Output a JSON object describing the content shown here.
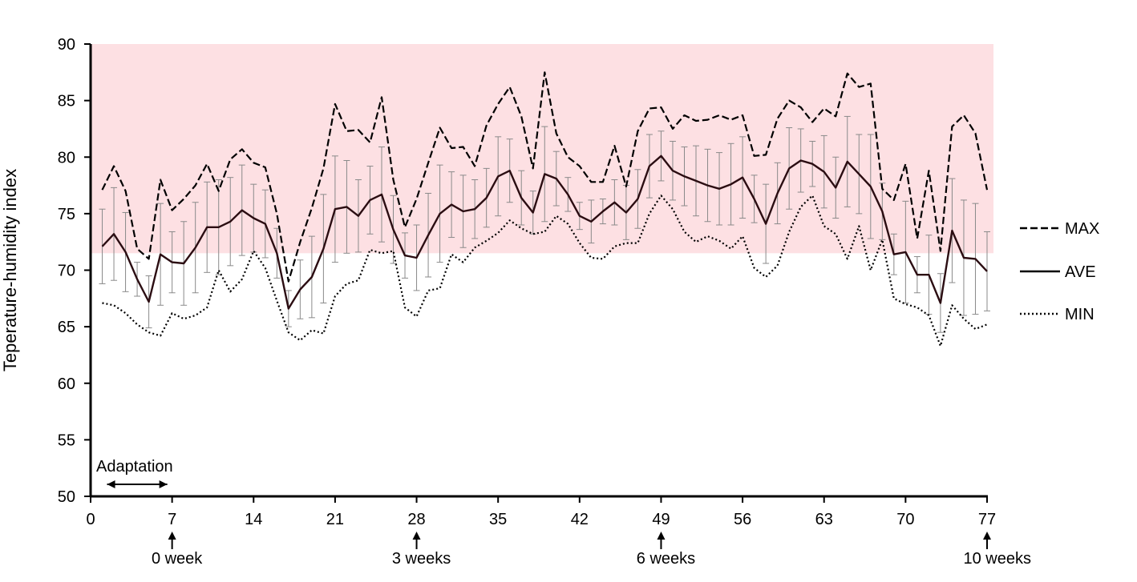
{
  "chart_data": {
    "type": "line",
    "title": "",
    "xlabel": "",
    "ylabel": "Teperature-humidity index",
    "xlim": [
      0,
      77
    ],
    "ylim": [
      50,
      90
    ],
    "xticks": [
      0,
      7,
      14,
      21,
      28,
      35,
      42,
      49,
      56,
      63,
      70,
      77
    ],
    "yticks": [
      50,
      55,
      60,
      65,
      70,
      75,
      80,
      85,
      90
    ],
    "grid": false,
    "legend_position": "right",
    "shaded_band": {
      "y_from": 71.5,
      "y_to": 90,
      "color": "#fde0e3"
    },
    "x": [
      1,
      2,
      3,
      4,
      5,
      6,
      7,
      8,
      9,
      10,
      11,
      12,
      13,
      14,
      15,
      16,
      17,
      18,
      19,
      20,
      21,
      22,
      23,
      24,
      25,
      26,
      27,
      28,
      29,
      30,
      31,
      32,
      33,
      34,
      35,
      36,
      37,
      38,
      39,
      40,
      41,
      42,
      43,
      44,
      45,
      46,
      47,
      48,
      49,
      50,
      51,
      52,
      53,
      54,
      55,
      56,
      57,
      58,
      59,
      60,
      61,
      62,
      63,
      64,
      65,
      66,
      67,
      68,
      69,
      70,
      71,
      72,
      73,
      74,
      75,
      76,
      77
    ],
    "series": [
      {
        "name": "MAX",
        "style": "dashed",
        "values": [
          77.1,
          79.2,
          77.0,
          71.9,
          71.0,
          78.0,
          75.3,
          76.3,
          77.5,
          79.4,
          77.0,
          79.8,
          80.7,
          79.5,
          79.1,
          75.0,
          69.0,
          72.5,
          75.5,
          79.0,
          84.7,
          82.3,
          82.4,
          81.3,
          85.3,
          78.0,
          73.8,
          76.3,
          79.5,
          82.6,
          80.8,
          80.9,
          79.2,
          82.8,
          84.7,
          86.2,
          83.6,
          79.0,
          87.5,
          82.1,
          80.0,
          79.2,
          77.8,
          77.8,
          81.0,
          77.4,
          82.3,
          84.3,
          84.4,
          82.5,
          83.7,
          83.2,
          83.3,
          83.7,
          83.3,
          83.7,
          80.1,
          80.2,
          83.4,
          85.0,
          84.4,
          83.1,
          84.3,
          83.6,
          87.4,
          86.2,
          86.5,
          77.2,
          76.2,
          79.4,
          72.8,
          78.8,
          71.7,
          82.7,
          83.7,
          82.1,
          77.1
        ]
      },
      {
        "name": "AVE",
        "style": "solid",
        "values": [
          72.1,
          73.2,
          71.6,
          69.2,
          67.2,
          71.4,
          70.7,
          70.6,
          72.0,
          73.8,
          73.8,
          74.3,
          75.3,
          74.6,
          74.1,
          71.5,
          66.6,
          68.3,
          69.4,
          71.9,
          75.4,
          75.6,
          74.8,
          76.2,
          76.7,
          73.6,
          71.3,
          71.1,
          73.1,
          75.0,
          75.8,
          75.2,
          75.4,
          76.4,
          78.3,
          78.8,
          76.4,
          75.1,
          78.5,
          78.1,
          76.7,
          74.8,
          74.3,
          75.2,
          76.0,
          75.1,
          76.3,
          79.2,
          80.1,
          78.8,
          78.3,
          77.9,
          77.5,
          77.2,
          77.6,
          78.2,
          76.3,
          74.1,
          76.8,
          79.0,
          79.7,
          79.4,
          78.7,
          77.3,
          79.6,
          78.5,
          77.4,
          75.2,
          71.4,
          71.6,
          69.6,
          69.6,
          67.1,
          73.5,
          71.1,
          71.0,
          69.9
        ]
      },
      {
        "name": "MIN",
        "style": "dotted",
        "values": [
          67.1,
          66.9,
          66.2,
          65.2,
          64.5,
          64.2,
          66.2,
          65.7,
          66.0,
          66.7,
          70.0,
          68.1,
          69.2,
          71.7,
          70.2,
          67.3,
          64.5,
          63.8,
          64.7,
          64.4,
          67.7,
          68.8,
          69.1,
          71.8,
          71.5,
          71.7,
          66.7,
          65.9,
          68.2,
          68.4,
          71.4,
          70.7,
          72.0,
          72.6,
          73.3,
          74.4,
          73.7,
          73.2,
          73.4,
          74.8,
          74.1,
          72.4,
          71.1,
          71.0,
          72.1,
          72.4,
          72.4,
          75.0,
          76.6,
          75.4,
          73.4,
          72.5,
          73.0,
          72.6,
          71.9,
          73.0,
          70.2,
          69.4,
          70.4,
          73.4,
          75.6,
          76.6,
          73.9,
          73.2,
          71.0,
          73.9,
          70.0,
          72.7,
          67.5,
          67.0,
          66.7,
          66.0,
          63.3,
          66.9,
          65.7,
          64.8,
          65.2
        ]
      }
    ],
    "error_bars": {
      "series": "AVE",
      "sd": [
        3.3,
        4.1,
        3.5,
        1.5,
        2.3,
        4.5,
        2.7,
        3.7,
        4.0,
        4.0,
        4.2,
        3.9,
        4.0,
        3.0,
        3.0,
        2.2,
        1.6,
        2.6,
        3.6,
        4.8,
        4.7,
        4.1,
        3.2,
        3.0,
        4.2,
        3.0,
        2.0,
        2.9,
        3.7,
        4.3,
        2.9,
        3.2,
        2.6,
        2.6,
        3.5,
        2.8,
        2.4,
        1.9,
        4.2,
        2.4,
        1.5,
        1.2,
        1.9,
        1.1,
        2.0,
        2.4,
        2.6,
        2.8,
        2.2,
        2.6,
        2.6,
        3.1,
        3.2,
        3.2,
        3.6,
        3.6,
        2.1,
        3.5,
        2.7,
        3.6,
        2.8,
        2.0,
        3.2,
        2.7,
        4.0,
        3.5,
        4.6,
        2.5,
        1.8,
        4.5,
        1.6,
        3.5,
        2.6,
        4.6,
        5.1,
        4.9,
        3.5
      ]
    },
    "annotations": [
      {
        "text": "Adaptation",
        "span": [
          1,
          7
        ],
        "kind": "double-arrow"
      },
      {
        "text": "0 week",
        "x": 7,
        "kind": "up-arrow"
      },
      {
        "text": "3 weeks",
        "x": 28,
        "kind": "up-arrow"
      },
      {
        "text": "6 weeks",
        "x": 49,
        "kind": "up-arrow"
      },
      {
        "text": "10 weeks",
        "x": 77,
        "kind": "up-arrow"
      }
    ]
  }
}
